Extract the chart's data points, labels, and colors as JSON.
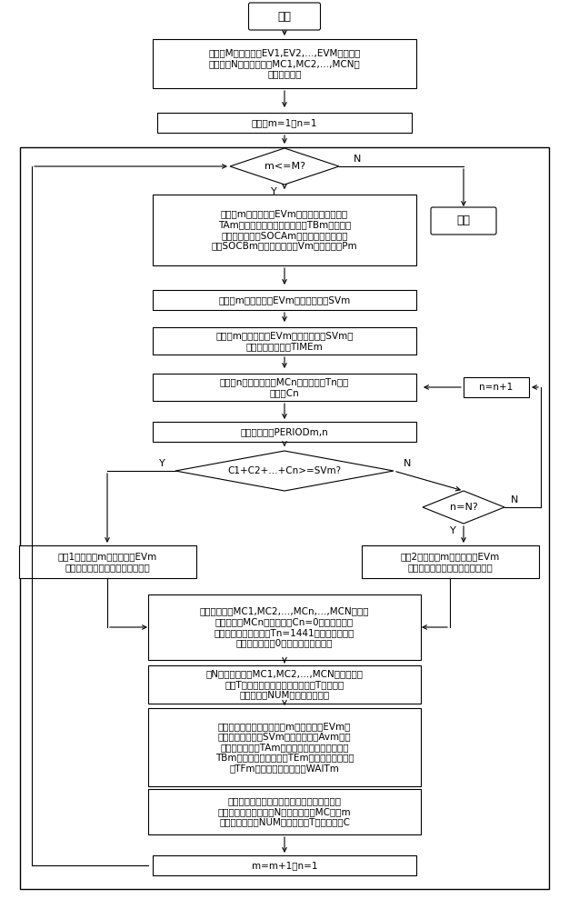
{
  "bg_color": "#ffffff",
  "nodes": {
    "start_text": "开始",
    "init1_text": "初始化M辆电动汽车EV1,EV2,…,EVM的充电需\n求参数和N台移动充电器MC1,MC2,…,MCN的\n工作状态参数",
    "init2_text": "初始化m=1，n=1",
    "d1_text": "m<=M?",
    "getdata_text": "获取第m辆电动汽车EVm的提出充电需求时刻\nTAm、预期离开充电服务站时刻TBm、动力电\n池起始荷电状态SOCAm、动力电池目标荷电\n状态SOCBm、动力电池容量Vm和充电功率Pm",
    "end_text": "结束",
    "calc1_text": "计算第m辆电动汽车EVm的需求充电量SVm",
    "calc2_text": "计算第m辆电动汽车EVm的需求充电量SVm对\n应的连续充电时长TIMEm",
    "getidle_text": "获取第n个移动充电器MCn的空闲时刻Tn和空\n闲容量Cn",
    "nplus1_text": "n=n+1",
    "calcperiod_text": "计算时间间隔PERIODm,n",
    "d2_text": "C1+C2+…+Cn>=SVm?",
    "d3_text": "n=N?",
    "mod1_text": "模块1：计算第m辆电动汽车EVm\n的充电方案和充电服务站运营参数",
    "mod2_text": "模块2：计算第m辆电动汽车EVm\n的充电方案和充电服务站运营参数",
    "setab_text": "若移动充电器MC1,MC2,…,MCn,…,MCN中某一\n移动充电器MCn的空闲容量Cn=0，设置其空闭\n时刻为异常状态值，即Tn=1441；表示该移动充\n电器空闲容量为0，不再提供充电服务",
    "sort_text": "对N台移动充电器MC1,MC2,…,MCN按各自空闲\n时刻T的升序进行排序；当空闲时刻T相同时，\n按各自编号NUM的升序进行排序",
    "out1_text": "输出电动汽车充电方案：第m辆电动汽车EVm的\n编号，需求充电量SVm，实际充电量Avm，提\n出充电需求时刻TAm，预期离开充电服务站时刻\nTBm，实际开始充电时刻TEm，实际完成充电时\n刻TFm和充电过程等待时间WAITm",
    "out2_text": "输出充电服务站运营参数：本充电方案使用的\n移动充电器运营参数：N台移动充电器MC在第m\n次排序后的编号NUM，空闲时刻T和空闲容量C",
    "mplus1_text": "m=m+1，n=1"
  }
}
